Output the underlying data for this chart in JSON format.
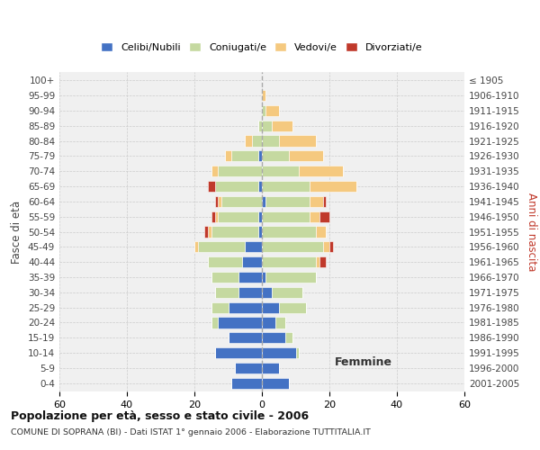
{
  "age_groups": [
    "0-4",
    "5-9",
    "10-14",
    "15-19",
    "20-24",
    "25-29",
    "30-34",
    "35-39",
    "40-44",
    "45-49",
    "50-54",
    "55-59",
    "60-64",
    "65-69",
    "70-74",
    "75-79",
    "80-84",
    "85-89",
    "90-94",
    "95-99",
    "100+"
  ],
  "birth_years": [
    "2001-2005",
    "1996-2000",
    "1991-1995",
    "1986-1990",
    "1981-1985",
    "1976-1980",
    "1971-1975",
    "1966-1970",
    "1961-1965",
    "1956-1960",
    "1951-1955",
    "1946-1950",
    "1941-1945",
    "1936-1940",
    "1931-1935",
    "1926-1930",
    "1921-1925",
    "1916-1920",
    "1911-1915",
    "1906-1910",
    "≤ 1905"
  ],
  "males": {
    "celibi": [
      9,
      8,
      14,
      10,
      13,
      10,
      7,
      7,
      6,
      5,
      1,
      1,
      0,
      1,
      0,
      1,
      0,
      0,
      0,
      0,
      0
    ],
    "coniugati": [
      0,
      0,
      0,
      0,
      2,
      5,
      7,
      8,
      10,
      14,
      14,
      12,
      12,
      13,
      13,
      8,
      3,
      1,
      0,
      0,
      0
    ],
    "vedovi": [
      0,
      0,
      0,
      0,
      0,
      0,
      0,
      0,
      0,
      1,
      1,
      1,
      1,
      0,
      2,
      2,
      2,
      0,
      0,
      0,
      0
    ],
    "divorziati": [
      0,
      0,
      0,
      0,
      0,
      0,
      0,
      0,
      0,
      0,
      1,
      1,
      1,
      2,
      0,
      0,
      0,
      0,
      0,
      0,
      0
    ]
  },
  "females": {
    "nubili": [
      8,
      5,
      10,
      7,
      4,
      5,
      3,
      1,
      0,
      0,
      0,
      0,
      1,
      0,
      0,
      0,
      0,
      0,
      0,
      0,
      0
    ],
    "coniugate": [
      0,
      0,
      1,
      2,
      3,
      8,
      9,
      15,
      16,
      18,
      16,
      14,
      13,
      14,
      11,
      8,
      5,
      3,
      1,
      0,
      0
    ],
    "vedove": [
      0,
      0,
      0,
      0,
      0,
      0,
      0,
      0,
      1,
      2,
      3,
      3,
      4,
      14,
      13,
      10,
      11,
      6,
      4,
      1,
      0
    ],
    "divorziate": [
      0,
      0,
      0,
      0,
      0,
      0,
      0,
      0,
      2,
      1,
      0,
      3,
      1,
      0,
      0,
      0,
      0,
      0,
      0,
      0,
      0
    ]
  },
  "colors": {
    "celibi_nubili": "#4472C4",
    "coniugati": "#C5D9A0",
    "vedovi": "#F5C97F",
    "divorziati": "#C0392B"
  },
  "xlim": 60,
  "title": "Popolazione per età, sesso e stato civile - 2006",
  "subtitle": "COMUNE DI SOPRANA (BI) - Dati ISTAT 1° gennaio 2006 - Elaborazione TUTTITALIA.IT",
  "ylabel_left": "Fasce di età",
  "ylabel_right": "Anni di nascita",
  "xlabel_right": "Femmine"
}
